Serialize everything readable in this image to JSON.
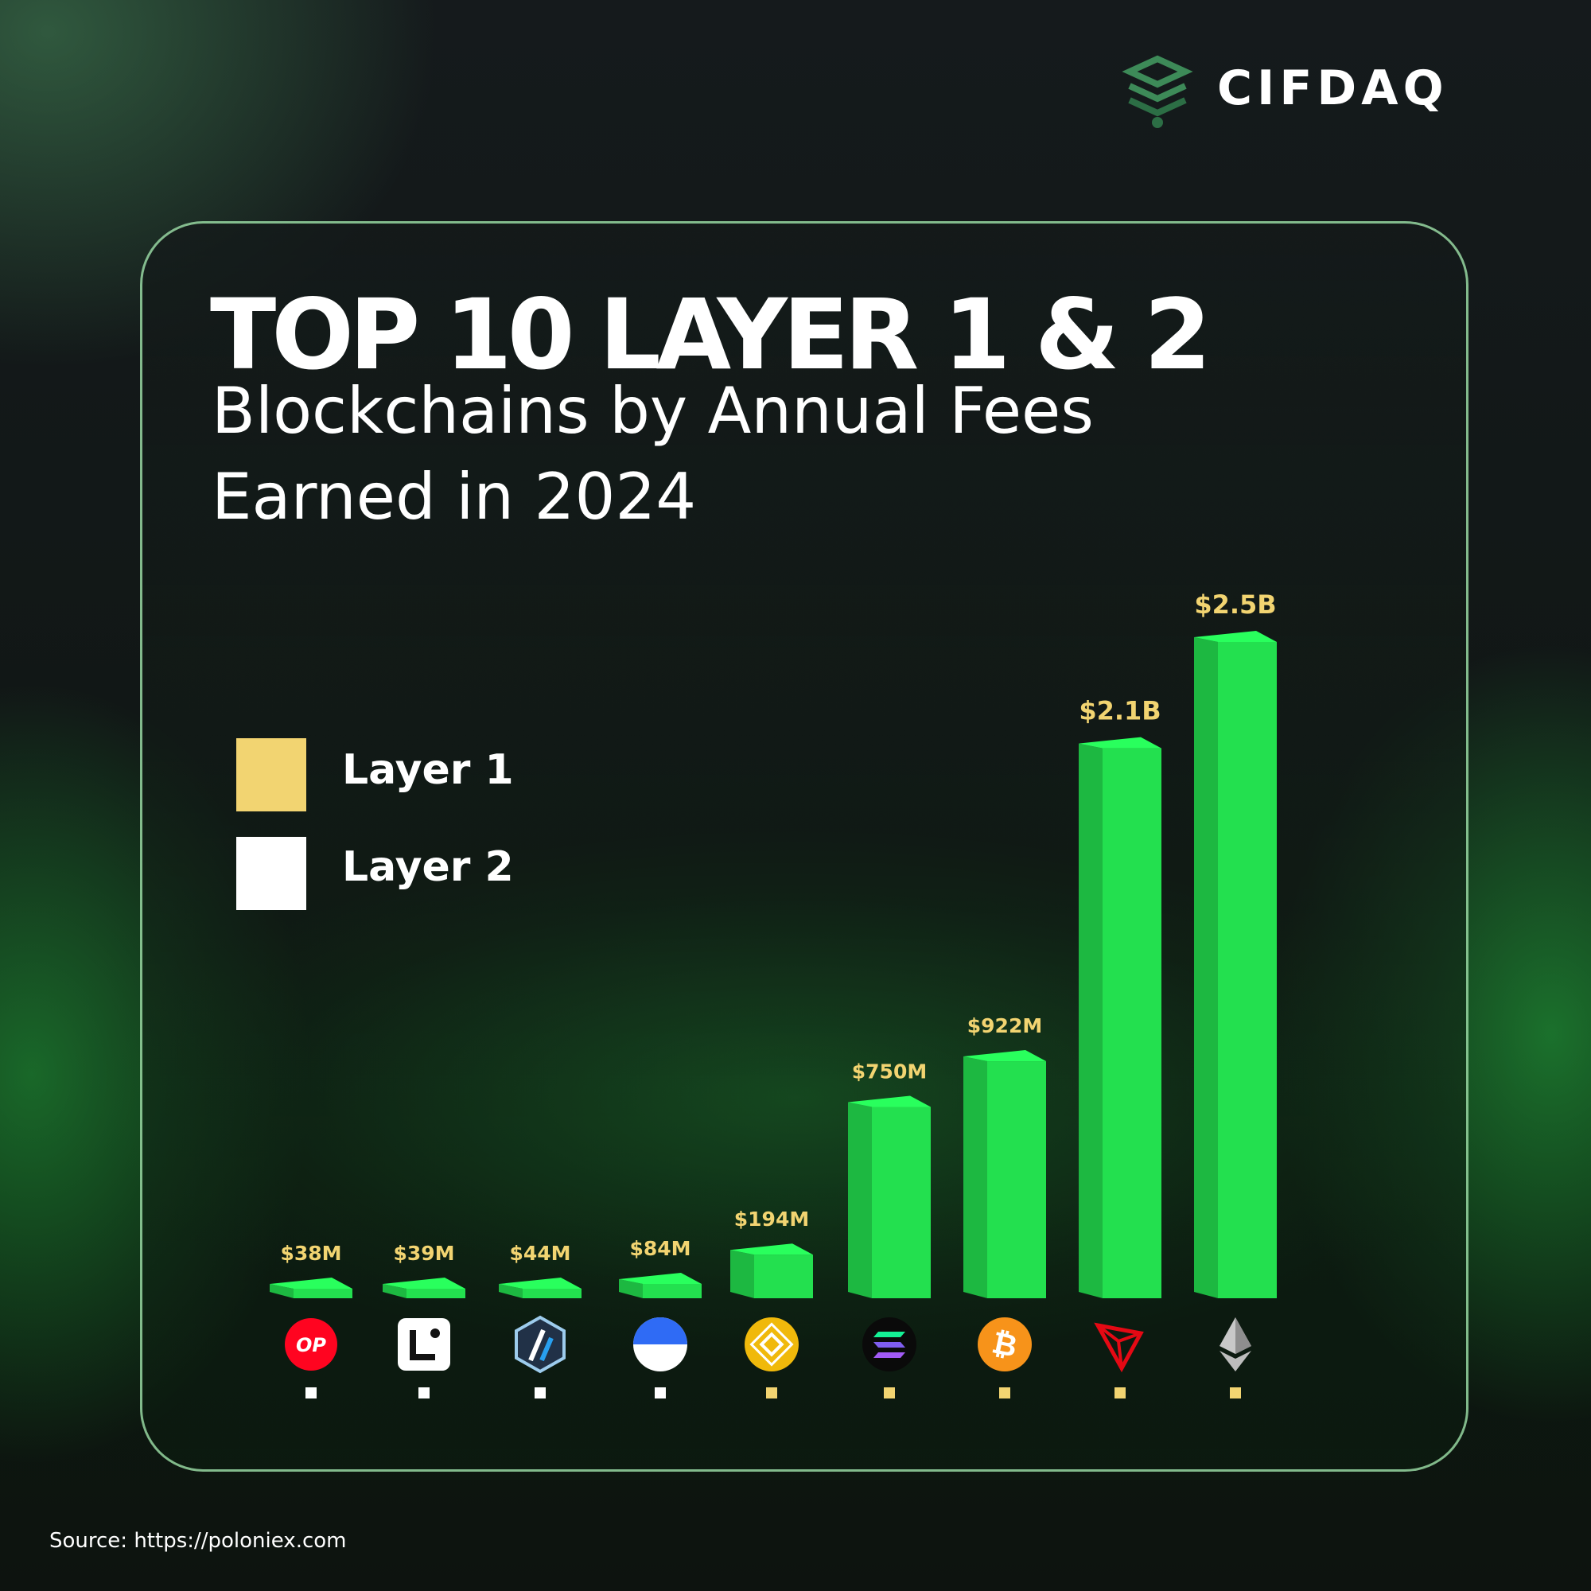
{
  "brand": {
    "name": "CIFDAQ"
  },
  "header": {
    "title": "TOP 10 LAYER 1 & 2",
    "subtitle_line1": "Blockchains by Annual Fees",
    "subtitle_line2": "Earned in 2024"
  },
  "legend": [
    {
      "label": "Layer 1",
      "color": "#f2d471"
    },
    {
      "label": "Layer 2",
      "color": "#ffffff"
    }
  ],
  "colors": {
    "bar": "#23e04f",
    "value_label": "#f2d471"
  },
  "source": "Source: https://poloniex.com",
  "chart_data": {
    "type": "bar",
    "categories": [
      "optimism-icon",
      "linea-icon",
      "arbitrum-icon",
      "base-icon",
      "bnb-icon",
      "solana-icon",
      "bitcoin-icon",
      "tron-icon",
      "ethereum-icon"
    ],
    "layers": [
      "Layer 2",
      "Layer 2",
      "Layer 2",
      "Layer 2",
      "Layer 1",
      "Layer 1",
      "Layer 1",
      "Layer 1",
      "Layer 1"
    ],
    "values": [
      38000000,
      39000000,
      44000000,
      84000000,
      194000000,
      750000000,
      922000000,
      2100000000,
      2500000000
    ],
    "value_labels": [
      "$38M",
      "$39M",
      "$44M",
      "$84M",
      "$194M",
      "$750M",
      "$922M",
      "$2.1B",
      "$2.5B"
    ],
    "legend_position": "left",
    "grid": false
  }
}
